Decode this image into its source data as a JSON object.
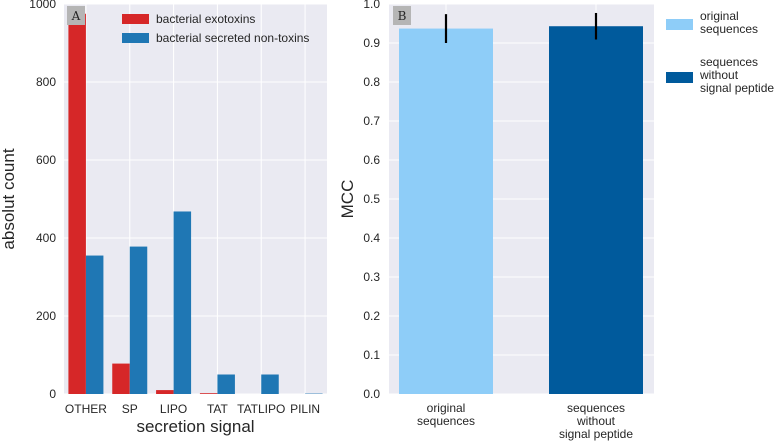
{
  "chart_data": [
    {
      "panel_label": "A",
      "type": "bar",
      "xlabel": "secretion signal",
      "ylabel": "absolut count",
      "ylim": [
        0,
        1000
      ],
      "yticks": [
        0,
        200,
        400,
        600,
        800,
        1000
      ],
      "grid": true,
      "legend_position": "top-right",
      "categories": [
        "OTHER",
        "SP",
        "LIPO",
        "TAT",
        "TATLIPO",
        "PILIN"
      ],
      "series": [
        {
          "name": "bacterial exotoxins",
          "color": "#d62728",
          "values": [
            975,
            78,
            10,
            2,
            0,
            0
          ]
        },
        {
          "name": "bacterial secreted non-toxins",
          "color": "#1f77b4",
          "values": [
            355,
            378,
            468,
            50,
            50,
            1
          ]
        }
      ]
    },
    {
      "panel_label": "B",
      "type": "bar",
      "xlabel": "",
      "ylabel": "MCC",
      "ylim": [
        0.0,
        1.0
      ],
      "yticks": [
        "0.0",
        "0.1",
        "0.2",
        "0.3",
        "0.4",
        "0.5",
        "0.6",
        "0.7",
        "0.8",
        "0.9",
        "1.0"
      ],
      "grid": true,
      "legend_position": "outside-right",
      "categories": [
        "original sequences",
        "sequences without signal peptide"
      ],
      "category_lines": [
        [
          "original",
          "sequences"
        ],
        [
          "sequences",
          "without",
          "signal peptide"
        ]
      ],
      "values": [
        0.937,
        0.943
      ],
      "errors": [
        0.037,
        0.034
      ],
      "colors": [
        "#8ecdf8",
        "#005a9c"
      ],
      "legend": [
        {
          "lines": [
            "original",
            "sequences"
          ],
          "color": "#8ecdf8"
        },
        {
          "lines": [
            "sequences",
            "without",
            "signal peptide"
          ],
          "color": "#005a9c"
        }
      ]
    }
  ]
}
